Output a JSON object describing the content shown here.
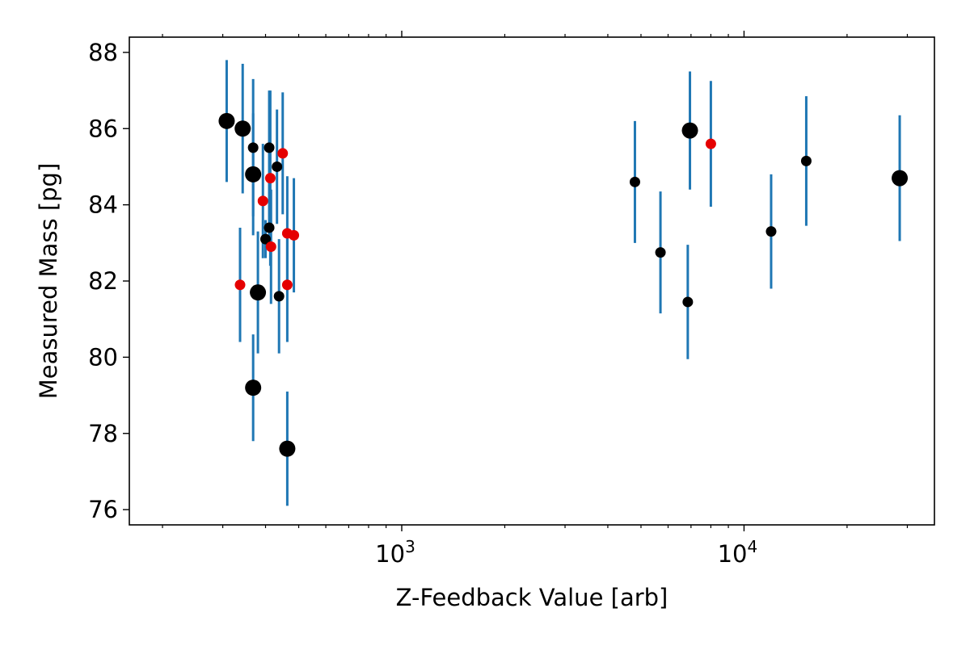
{
  "chart_data": {
    "type": "scatter",
    "title": "",
    "xlabel": "Z-Feedback Value [arb]",
    "ylabel": "Measured Mass [pg]",
    "xscale": "log",
    "xlim": [
      160,
      36000
    ],
    "ylim": [
      75.6,
      88.4
    ],
    "grid": false,
    "legend": "none",
    "x_ticks": [
      {
        "value": 1000,
        "base": "10",
        "exp": "3"
      },
      {
        "value": 10000,
        "base": "10",
        "exp": "4"
      }
    ],
    "y_ticks": [
      76,
      78,
      80,
      82,
      84,
      86,
      88
    ],
    "colors": {
      "error_bar": "#1f77b4",
      "point_black": "#000000",
      "point_red": "#e50000"
    },
    "points": [
      {
        "x": 308,
        "y": 86.2,
        "err": 1.6,
        "color": "black",
        "size": "large"
      },
      {
        "x": 343,
        "y": 86.0,
        "err": 1.7,
        "color": "black",
        "size": "large"
      },
      {
        "x": 368,
        "y": 85.5,
        "err": 1.8,
        "color": "black",
        "size": "small"
      },
      {
        "x": 368,
        "y": 84.8,
        "err": 1.6,
        "color": "black",
        "size": "large"
      },
      {
        "x": 368,
        "y": 79.2,
        "err": 1.4,
        "color": "black",
        "size": "large"
      },
      {
        "x": 380,
        "y": 81.7,
        "err": 1.6,
        "color": "black",
        "size": "large"
      },
      {
        "x": 337,
        "y": 81.9,
        "err": 1.5,
        "color": "red",
        "size": "small"
      },
      {
        "x": 393,
        "y": 84.1,
        "err": 1.5,
        "color": "red",
        "size": "small"
      },
      {
        "x": 400,
        "y": 83.1,
        "err": 0.5,
        "color": "black",
        "size": "small"
      },
      {
        "x": 410,
        "y": 83.4,
        "err": 0.6,
        "color": "black",
        "size": "small"
      },
      {
        "x": 410,
        "y": 85.5,
        "err": 1.5,
        "color": "black",
        "size": "small"
      },
      {
        "x": 413,
        "y": 84.7,
        "err": 2.3,
        "color": "red",
        "size": "small"
      },
      {
        "x": 415,
        "y": 82.9,
        "err": 1.5,
        "color": "red",
        "size": "small"
      },
      {
        "x": 432,
        "y": 85.0,
        "err": 1.5,
        "color": "black",
        "size": "small"
      },
      {
        "x": 438,
        "y": 81.6,
        "err": 1.5,
        "color": "black",
        "size": "small"
      },
      {
        "x": 449,
        "y": 85.35,
        "err": 1.6,
        "color": "red",
        "size": "small"
      },
      {
        "x": 463,
        "y": 83.25,
        "err": 1.5,
        "color": "red",
        "size": "small"
      },
      {
        "x": 463,
        "y": 81.9,
        "err": 1.5,
        "color": "red",
        "size": "small"
      },
      {
        "x": 463,
        "y": 77.6,
        "err": 1.5,
        "color": "black",
        "size": "large"
      },
      {
        "x": 484,
        "y": 83.2,
        "err": 1.5,
        "color": "red",
        "size": "small"
      },
      {
        "x": 4800,
        "y": 84.6,
        "err": 1.6,
        "color": "black",
        "size": "small"
      },
      {
        "x": 5700,
        "y": 82.75,
        "err": 1.6,
        "color": "black",
        "size": "small"
      },
      {
        "x": 6850,
        "y": 81.45,
        "err": 1.5,
        "color": "black",
        "size": "small"
      },
      {
        "x": 6950,
        "y": 85.95,
        "err": 1.55,
        "color": "black",
        "size": "large"
      },
      {
        "x": 8000,
        "y": 85.6,
        "err": 1.65,
        "color": "red",
        "size": "small"
      },
      {
        "x": 12000,
        "y": 83.3,
        "err": 1.5,
        "color": "black",
        "size": "small"
      },
      {
        "x": 15200,
        "y": 85.15,
        "err": 1.7,
        "color": "black",
        "size": "small"
      },
      {
        "x": 28500,
        "y": 84.7,
        "err": 1.65,
        "color": "black",
        "size": "large"
      }
    ]
  }
}
